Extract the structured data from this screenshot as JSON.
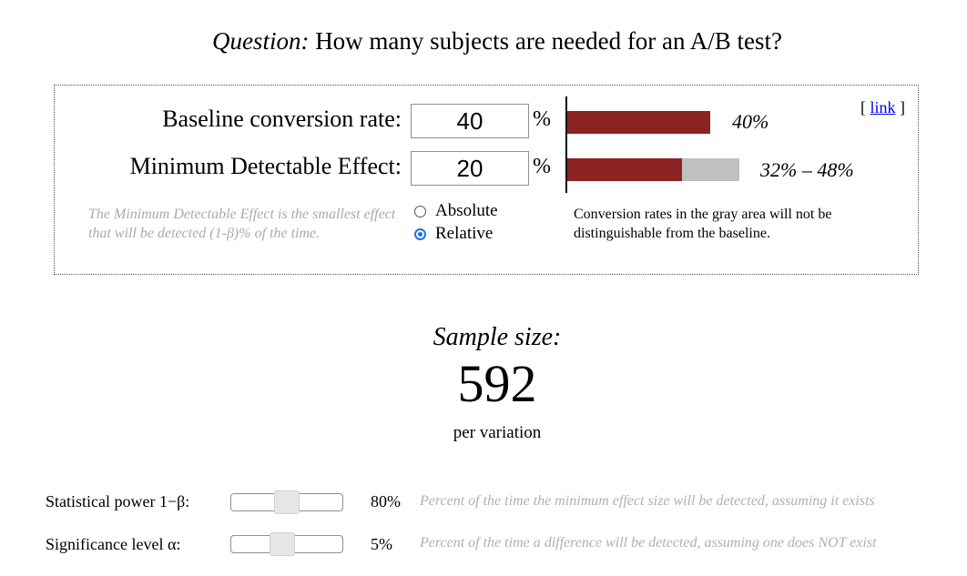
{
  "question": {
    "label": "Question:",
    "text": " How many subjects are needed for an A/B test?"
  },
  "inputs": {
    "baseline": {
      "label": "Baseline conversion rate:",
      "value": "40",
      "unit": "%",
      "bar_fraction": 0.4,
      "bar_label": "40%"
    },
    "mde": {
      "label": "Minimum Detectable Effect:",
      "value": "20",
      "unit": "%",
      "bar_fraction": 0.32,
      "gray_fraction": 0.16,
      "bar_label": "32% – 48%"
    }
  },
  "link": {
    "prefix": "[ ",
    "text": "link",
    "suffix": " ]"
  },
  "mde_note": "The Minimum Detectable Effect is the smallest effect that will be detected (1-β)% of the time.",
  "mode": {
    "options": [
      "Absolute",
      "Relative"
    ],
    "selected": "Relative"
  },
  "gray_note": "Conversion rates in the gray area will not be distinguishable from the baseline.",
  "result": {
    "label": "Sample size:",
    "value": "592",
    "sub": "per variation"
  },
  "params": {
    "power": {
      "label": "Statistical power 1−β:",
      "value": "80%",
      "level": 0.8,
      "desc": "Percent of the time the minimum effect size will be detected, assuming it exists"
    },
    "alpha": {
      "label": "Significance level α:",
      "value": "5%",
      "level": 0.05,
      "desc": "Percent of the time a difference will be detected, assuming one does NOT exist"
    }
  },
  "colors": {
    "bar": "#8b2323",
    "gray_area": "#c0c0c0",
    "link": "#0000ee"
  }
}
